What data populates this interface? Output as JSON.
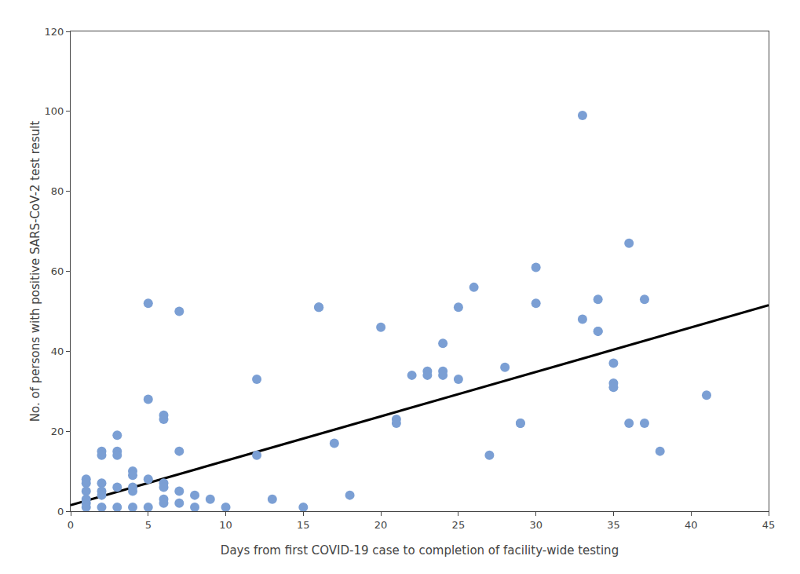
{
  "chart_data": {
    "type": "scatter",
    "xlabel": "Days from first COVID-19 case to completion of facility-wide testing",
    "ylabel": "No. of persons with positive SARS-CoV-2 test result",
    "series": [
      {
        "type": "scatter",
        "color": "#7b9fd4",
        "x": [
          1,
          1,
          1,
          1,
          1,
          1,
          2,
          2,
          2,
          2,
          2,
          2,
          3,
          3,
          3,
          3,
          3,
          4,
          4,
          4,
          4,
          4,
          5,
          5,
          5,
          5,
          6,
          6,
          6,
          6,
          6,
          6,
          7,
          7,
          7,
          7,
          8,
          8,
          9,
          10,
          12,
          12,
          13,
          15,
          16,
          16,
          17,
          18,
          20,
          21,
          21,
          22,
          23,
          23,
          24,
          24,
          24,
          25,
          25,
          26,
          27,
          28,
          29,
          29,
          30,
          30,
          33,
          33,
          34,
          34,
          34,
          35,
          35,
          35,
          36,
          36,
          37,
          37,
          38,
          41
        ],
        "values": [
          8,
          7,
          5,
          3,
          2,
          1,
          15,
          14,
          7,
          5,
          4,
          1,
          19,
          15,
          14,
          6,
          1,
          10,
          9,
          6,
          5,
          1,
          52,
          28,
          8,
          1,
          24,
          23,
          7,
          6,
          3,
          2,
          50,
          15,
          5,
          2,
          4,
          1,
          3,
          1,
          33,
          14,
          3,
          1,
          51,
          51,
          17,
          4,
          46,
          23,
          22,
          34,
          35,
          34,
          42,
          35,
          34,
          51,
          33,
          56,
          14,
          36,
          22,
          22,
          61,
          52,
          99,
          48,
          53,
          45,
          45,
          37,
          32,
          31,
          67,
          22,
          53,
          22,
          15,
          29
        ]
      },
      {
        "type": "line",
        "color": "#000000",
        "x": [
          0,
          45
        ],
        "values": [
          1.5,
          51.5
        ]
      }
    ],
    "xlim": [
      0,
      45
    ],
    "ylim": [
      0,
      120
    ],
    "xticks": [
      0,
      5,
      10,
      15,
      20,
      25,
      30,
      35,
      40,
      45
    ],
    "yticks": [
      0,
      20,
      40,
      60,
      80,
      100,
      120
    ],
    "grid": false
  }
}
